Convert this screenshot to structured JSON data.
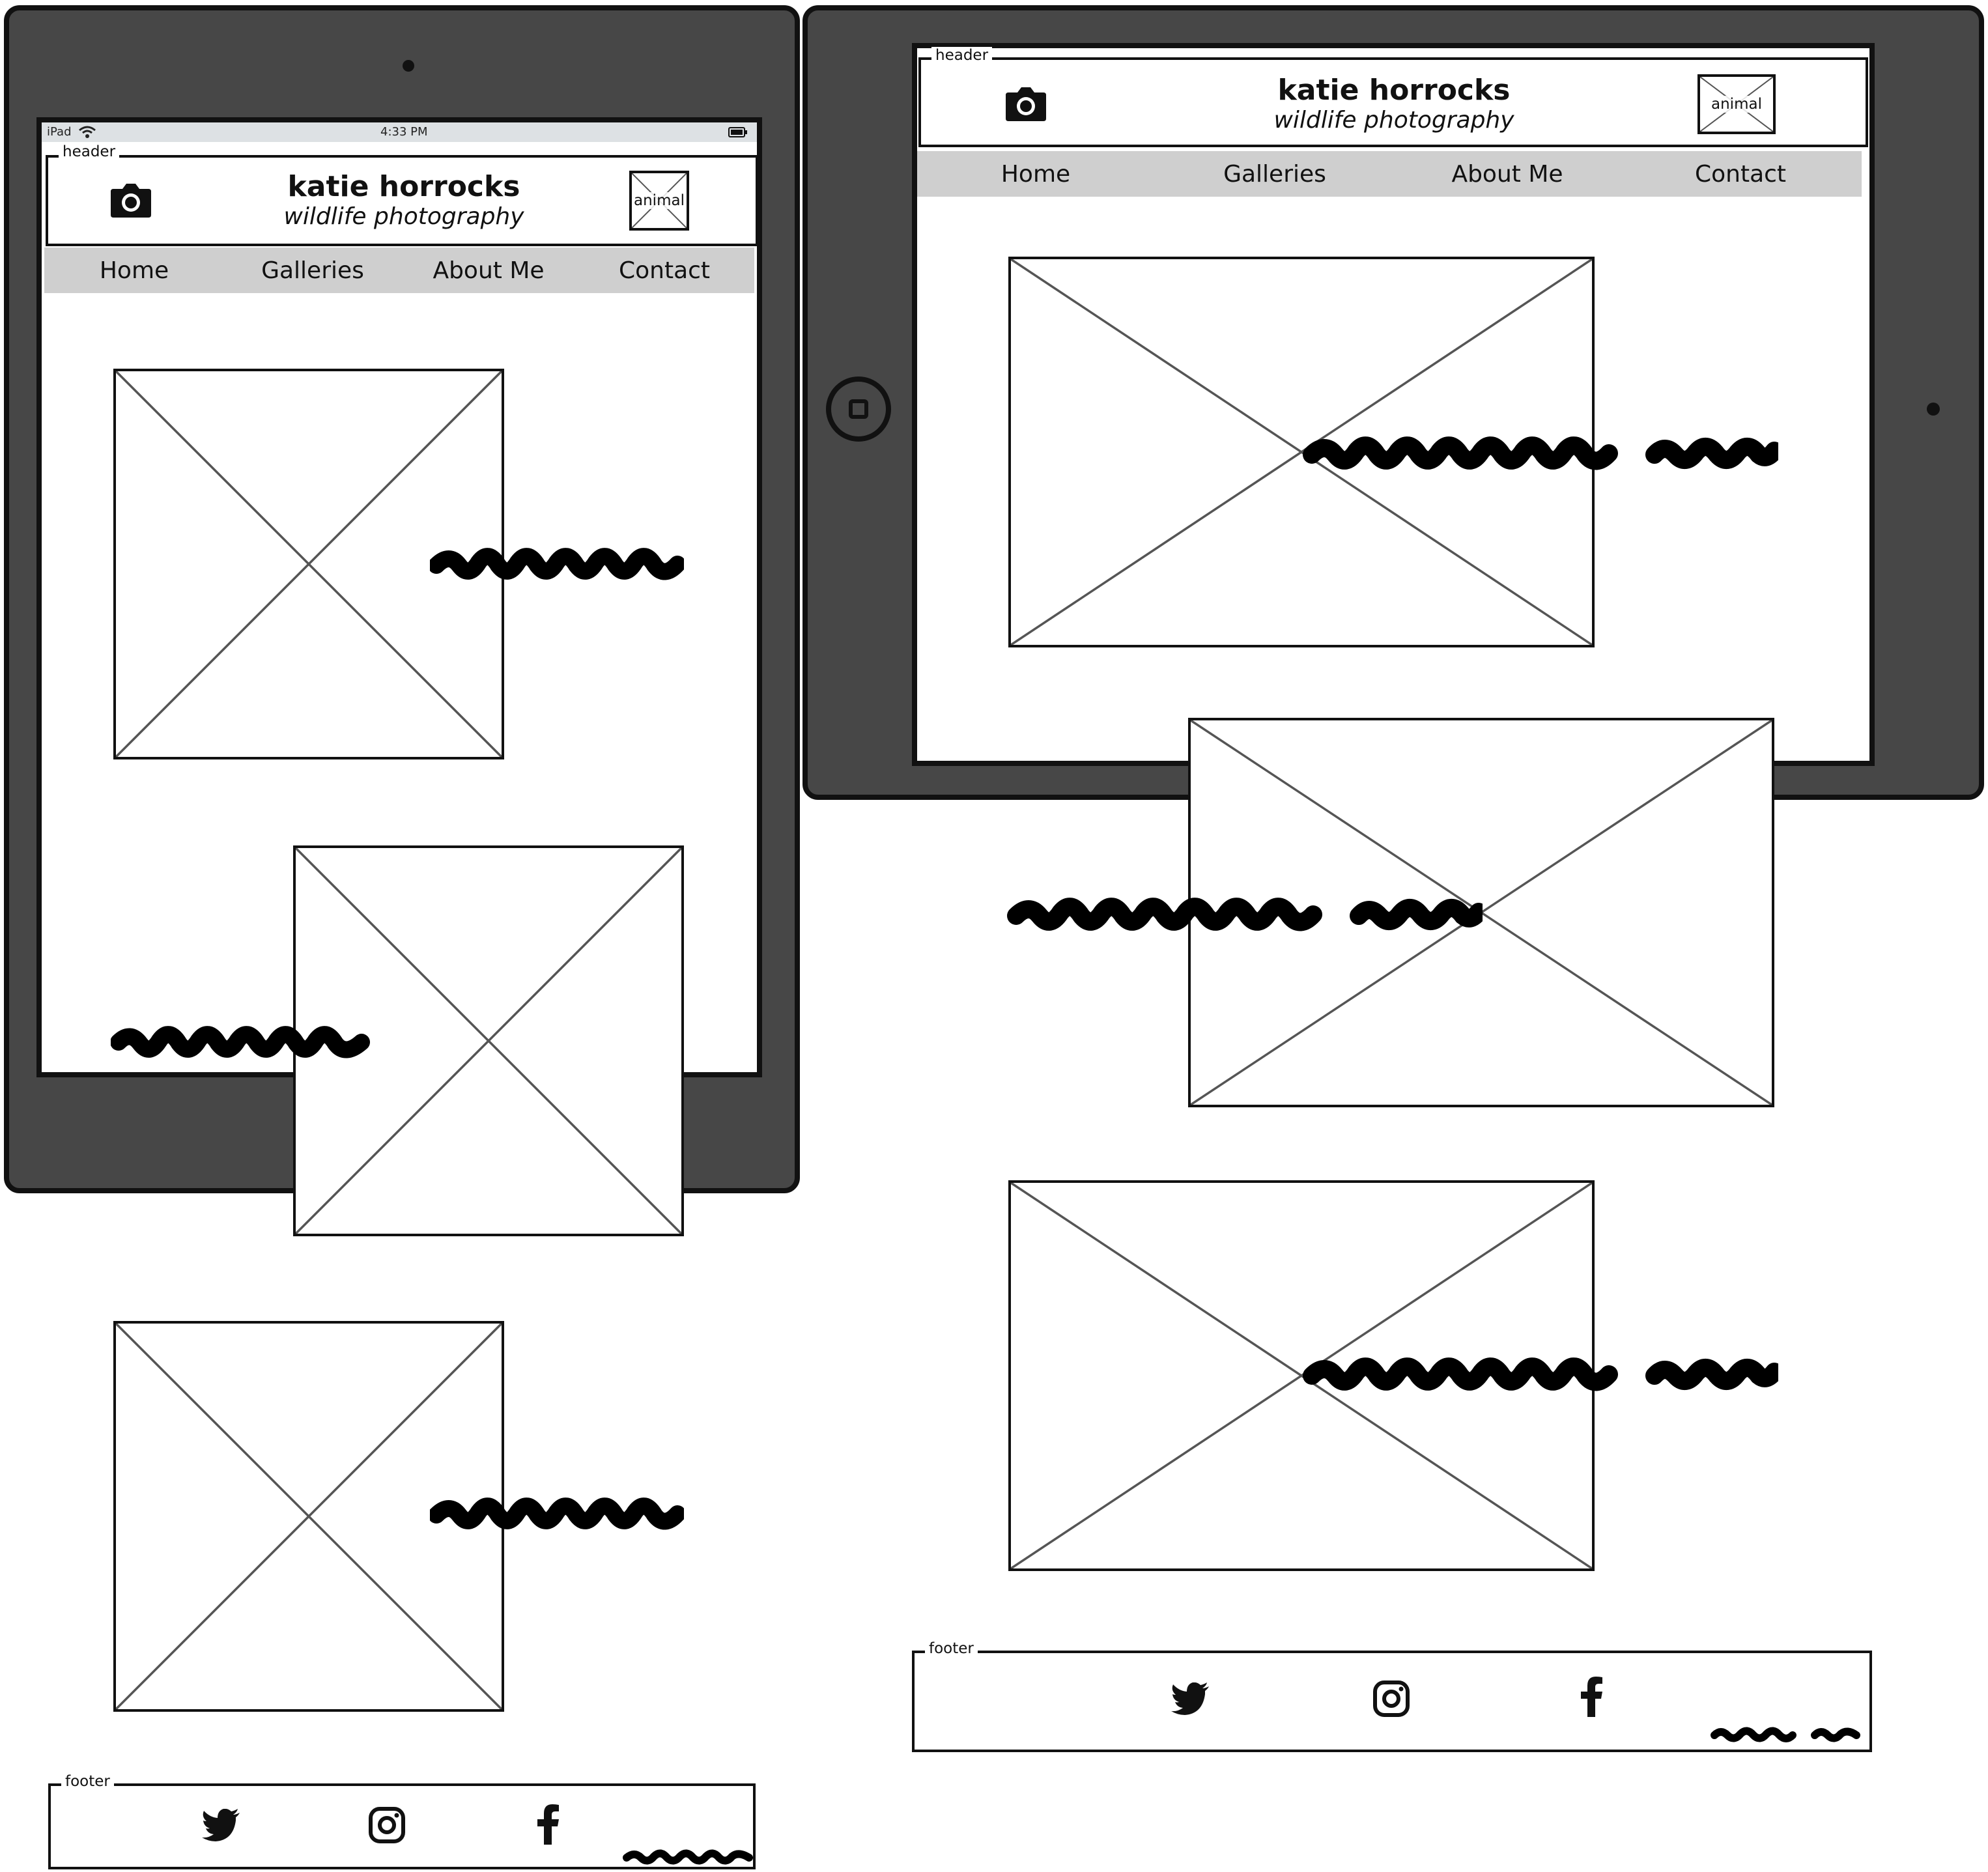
{
  "ipad_status": {
    "device": "iPad",
    "time": "4:33 PM"
  },
  "header": {
    "legend": "header",
    "title": "katie horrocks",
    "subtitle": "wildlife photography",
    "logo_label": "animal",
    "camera_icon": "camera-icon"
  },
  "nav": {
    "items": [
      {
        "label": "Home"
      },
      {
        "label": "Galleries"
      },
      {
        "label": "About Me"
      },
      {
        "label": "Contact"
      }
    ]
  },
  "footer": {
    "legend": "footer",
    "icons": [
      "twitter-icon",
      "instagram-icon",
      "facebook-icon"
    ]
  },
  "colors": {
    "device_body": "#474747",
    "nav_bg": "#cfcfcf",
    "status_bg": "#dde1e4"
  }
}
